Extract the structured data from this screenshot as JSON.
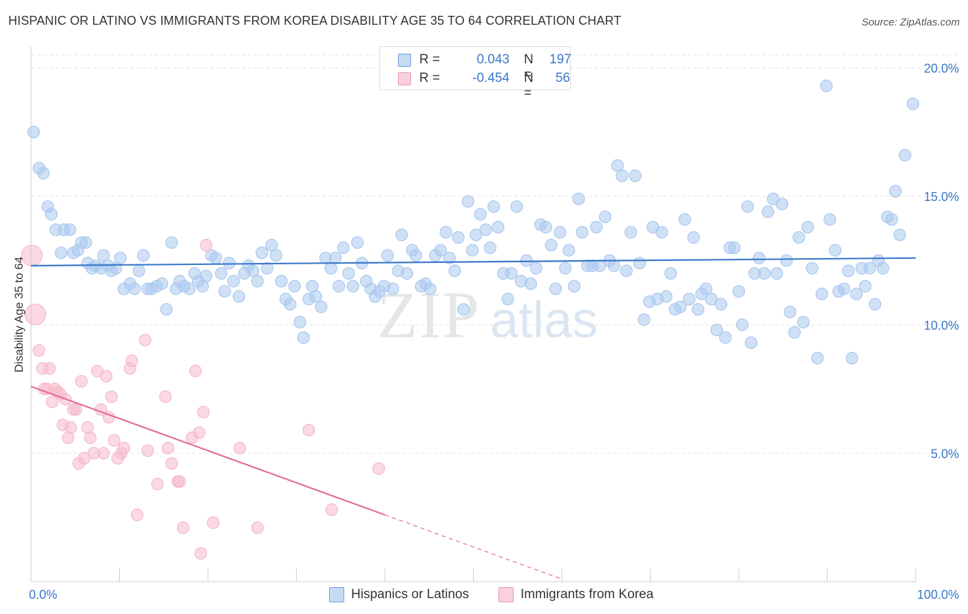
{
  "header": {
    "title": "HISPANIC OR LATINO VS IMMIGRANTS FROM KOREA DISABILITY AGE 35 TO 64 CORRELATION CHART",
    "source": "Source: ZipAtlas.com"
  },
  "stats": {
    "rows": [
      {
        "r_label": "R =",
        "r_value": "0.043",
        "n_label": "N =",
        "n_value": "197",
        "color": "#a9c8ef"
      },
      {
        "r_label": "R =",
        "r_value": "-0.454",
        "n_label": "N =",
        "n_value": "56",
        "color": "#f5b9cb"
      }
    ]
  },
  "legend": {
    "items": [
      {
        "label": "Hispanics or Latinos",
        "color": "#a9c8ef"
      },
      {
        "label": "Immigrants from Korea",
        "color": "#f5b9cb"
      }
    ]
  },
  "watermark": {
    "zip": "ZIP",
    "atlas": "atlas"
  },
  "chart_data": {
    "type": "scatter",
    "title": "HISPANIC OR LATINO VS IMMIGRANTS FROM KOREA DISABILITY AGE 35 TO 64 CORRELATION CHART",
    "xlabel": "",
    "ylabel": "Disability Age 35 to 64",
    "xlim": [
      0,
      100
    ],
    "ylim": [
      0,
      20.5
    ],
    "x_tick_labels": [
      "0.0%",
      "100.0%"
    ],
    "y_tick_labels": [
      "5.0%",
      "10.0%",
      "15.0%",
      "20.0%"
    ],
    "y_ticks": [
      5,
      10,
      15,
      20
    ],
    "grid": true,
    "series": [
      {
        "name": "Hispanics or Latinos",
        "color": "#3a78c9",
        "fill": "#a9c8ef",
        "trend": {
          "x": [
            0,
            100
          ],
          "y": [
            12.3,
            12.6
          ]
        },
        "points": [
          [
            0.3,
            17.5
          ],
          [
            0.9,
            16.1
          ],
          [
            1.4,
            15.9
          ],
          [
            1.9,
            14.6
          ],
          [
            2.3,
            14.3
          ],
          [
            2.8,
            13.7
          ],
          [
            3.4,
            12.8
          ],
          [
            3.7,
            13.7
          ],
          [
            4.4,
            13.7
          ],
          [
            4.8,
            12.8
          ],
          [
            5.3,
            12.9
          ],
          [
            5.7,
            13.2
          ],
          [
            6.2,
            13.2
          ],
          [
            6.4,
            12.4
          ],
          [
            6.9,
            12.2
          ],
          [
            7.3,
            12.3
          ],
          [
            7.9,
            12.2
          ],
          [
            8.2,
            12.7
          ],
          [
            8.7,
            12.3
          ],
          [
            9.1,
            12.1
          ],
          [
            9.6,
            12.2
          ],
          [
            10.1,
            12.6
          ],
          [
            10.5,
            11.4
          ],
          [
            11.2,
            11.6
          ],
          [
            11.7,
            11.4
          ],
          [
            12.2,
            12.1
          ],
          [
            12.7,
            12.7
          ],
          [
            13.2,
            11.4
          ],
          [
            13.6,
            11.4
          ],
          [
            14.2,
            11.5
          ],
          [
            14.8,
            11.6
          ],
          [
            15.3,
            10.6
          ],
          [
            15.9,
            13.2
          ],
          [
            16.4,
            11.4
          ],
          [
            16.8,
            11.7
          ],
          [
            17.3,
            11.5
          ],
          [
            17.9,
            11.4
          ],
          [
            18.5,
            12.0
          ],
          [
            18.9,
            11.7
          ],
          [
            19.4,
            11.5
          ],
          [
            19.8,
            11.9
          ],
          [
            20.4,
            12.7
          ],
          [
            20.9,
            12.6
          ],
          [
            21.5,
            12.0
          ],
          [
            21.9,
            11.3
          ],
          [
            22.4,
            12.4
          ],
          [
            22.9,
            11.7
          ],
          [
            23.5,
            11.1
          ],
          [
            24.1,
            12.0
          ],
          [
            24.6,
            12.3
          ],
          [
            25.1,
            12.1
          ],
          [
            25.6,
            11.7
          ],
          [
            26.1,
            12.8
          ],
          [
            26.7,
            12.2
          ],
          [
            27.2,
            13.1
          ],
          [
            27.7,
            12.7
          ],
          [
            28.3,
            11.7
          ],
          [
            28.8,
            11.0
          ],
          [
            29.3,
            10.8
          ],
          [
            29.8,
            11.5
          ],
          [
            30.4,
            10.1
          ],
          [
            30.8,
            9.5
          ],
          [
            31.4,
            11.0
          ],
          [
            31.8,
            11.5
          ],
          [
            32.2,
            11.1
          ],
          [
            32.8,
            10.7
          ],
          [
            33.3,
            12.6
          ],
          [
            33.9,
            12.2
          ],
          [
            34.4,
            12.6
          ],
          [
            34.8,
            11.5
          ],
          [
            35.3,
            13.0
          ],
          [
            35.9,
            12.0
          ],
          [
            36.4,
            11.5
          ],
          [
            36.9,
            13.2
          ],
          [
            37.4,
            12.4
          ],
          [
            37.9,
            11.7
          ],
          [
            38.4,
            11.4
          ],
          [
            38.9,
            11.1
          ],
          [
            39.4,
            11.3
          ],
          [
            39.9,
            11.5
          ],
          [
            40.3,
            12.7
          ],
          [
            40.9,
            11.4
          ],
          [
            41.5,
            12.1
          ],
          [
            41.9,
            13.5
          ],
          [
            42.5,
            12.0
          ],
          [
            43.1,
            12.9
          ],
          [
            43.5,
            12.7
          ],
          [
            44.1,
            11.5
          ],
          [
            44.6,
            11.6
          ],
          [
            45.1,
            11.4
          ],
          [
            45.7,
            12.7
          ],
          [
            46.3,
            12.9
          ],
          [
            46.9,
            13.6
          ],
          [
            47.3,
            12.6
          ],
          [
            47.9,
            12.1
          ],
          [
            48.3,
            13.4
          ],
          [
            48.9,
            10.6
          ],
          [
            49.4,
            14.8
          ],
          [
            49.9,
            12.9
          ],
          [
            50.3,
            13.5
          ],
          [
            50.8,
            14.3
          ],
          [
            51.4,
            13.7
          ],
          [
            51.9,
            13.0
          ],
          [
            52.3,
            14.6
          ],
          [
            52.8,
            13.8
          ],
          [
            53.4,
            12.0
          ],
          [
            53.9,
            11.0
          ],
          [
            54.3,
            12.0
          ],
          [
            54.9,
            14.6
          ],
          [
            55.4,
            11.7
          ],
          [
            56.0,
            12.5
          ],
          [
            56.5,
            11.6
          ],
          [
            57.1,
            12.2
          ],
          [
            57.6,
            13.9
          ],
          [
            58.2,
            13.8
          ],
          [
            58.8,
            13.1
          ],
          [
            59.3,
            11.4
          ],
          [
            59.8,
            13.6
          ],
          [
            60.4,
            12.2
          ],
          [
            60.8,
            12.9
          ],
          [
            61.4,
            11.5
          ],
          [
            61.9,
            14.9
          ],
          [
            62.3,
            13.6
          ],
          [
            62.9,
            12.3
          ],
          [
            63.5,
            12.3
          ],
          [
            63.9,
            13.8
          ],
          [
            64.3,
            12.3
          ],
          [
            64.9,
            14.2
          ],
          [
            65.4,
            12.5
          ],
          [
            65.9,
            12.3
          ],
          [
            66.3,
            16.2
          ],
          [
            66.8,
            15.8
          ],
          [
            67.3,
            12.1
          ],
          [
            67.8,
            13.6
          ],
          [
            68.3,
            15.8
          ],
          [
            68.8,
            12.4
          ],
          [
            69.3,
            10.2
          ],
          [
            69.9,
            10.9
          ],
          [
            70.3,
            13.8
          ],
          [
            70.8,
            11.0
          ],
          [
            71.3,
            13.6
          ],
          [
            71.8,
            11.1
          ],
          [
            72.3,
            12.0
          ],
          [
            72.8,
            10.6
          ],
          [
            73.4,
            10.7
          ],
          [
            73.9,
            14.1
          ],
          [
            74.4,
            11.0
          ],
          [
            74.9,
            13.4
          ],
          [
            75.4,
            10.6
          ],
          [
            75.8,
            11.2
          ],
          [
            76.3,
            11.4
          ],
          [
            76.9,
            11.0
          ],
          [
            77.5,
            9.8
          ],
          [
            78.0,
            10.8
          ],
          [
            78.5,
            9.5
          ],
          [
            79.0,
            13.0
          ],
          [
            79.5,
            13.0
          ],
          [
            80.0,
            11.3
          ],
          [
            80.4,
            10.0
          ],
          [
            81.0,
            14.6
          ],
          [
            81.4,
            9.3
          ],
          [
            81.8,
            12.0
          ],
          [
            82.3,
            12.6
          ],
          [
            82.9,
            12.0
          ],
          [
            83.3,
            14.4
          ],
          [
            83.9,
            14.9
          ],
          [
            84.3,
            12.0
          ],
          [
            84.9,
            14.7
          ],
          [
            85.4,
            12.5
          ],
          [
            85.8,
            10.5
          ],
          [
            86.3,
            9.7
          ],
          [
            86.8,
            13.4
          ],
          [
            87.3,
            10.1
          ],
          [
            87.8,
            13.8
          ],
          [
            88.3,
            12.2
          ],
          [
            88.9,
            8.7
          ],
          [
            89.4,
            11.2
          ],
          [
            89.9,
            19.3
          ],
          [
            90.3,
            14.1
          ],
          [
            90.9,
            12.9
          ],
          [
            91.3,
            11.3
          ],
          [
            91.9,
            11.4
          ],
          [
            92.4,
            12.1
          ],
          [
            92.8,
            8.7
          ],
          [
            93.3,
            11.2
          ],
          [
            93.9,
            12.2
          ],
          [
            94.3,
            11.5
          ],
          [
            94.8,
            12.2
          ],
          [
            95.4,
            10.8
          ],
          [
            95.8,
            12.5
          ],
          [
            96.3,
            12.2
          ],
          [
            96.8,
            14.2
          ],
          [
            97.3,
            14.1
          ],
          [
            97.7,
            15.2
          ],
          [
            98.2,
            13.5
          ],
          [
            98.8,
            16.6
          ],
          [
            99.7,
            18.6
          ]
        ]
      },
      {
        "name": "Immigrants from Korea",
        "color": "#e06d93",
        "fill": "#f5b9cb",
        "trend": {
          "x": [
            0,
            40
          ],
          "y": [
            7.6,
            2.6
          ]
        },
        "trend_dashed": {
          "x": [
            40,
            60
          ],
          "y": [
            2.6,
            0.1
          ]
        },
        "points": [
          [
            0.1,
            12.7
          ],
          [
            0.5,
            10.4
          ],
          [
            0.9,
            9.0
          ],
          [
            1.3,
            8.3
          ],
          [
            1.5,
            7.5
          ],
          [
            1.8,
            7.5
          ],
          [
            2.1,
            8.3
          ],
          [
            2.4,
            7.0
          ],
          [
            2.7,
            7.5
          ],
          [
            3.0,
            7.4
          ],
          [
            3.3,
            7.3
          ],
          [
            3.6,
            6.1
          ],
          [
            3.9,
            7.1
          ],
          [
            4.2,
            5.6
          ],
          [
            4.5,
            6.0
          ],
          [
            4.8,
            6.7
          ],
          [
            5.1,
            6.7
          ],
          [
            5.4,
            4.6
          ],
          [
            5.7,
            7.8
          ],
          [
            6.0,
            4.8
          ],
          [
            6.4,
            6.0
          ],
          [
            6.7,
            5.6
          ],
          [
            7.1,
            5.0
          ],
          [
            7.5,
            8.2
          ],
          [
            7.9,
            6.7
          ],
          [
            8.2,
            5.0
          ],
          [
            8.5,
            8.0
          ],
          [
            8.8,
            6.4
          ],
          [
            9.1,
            7.2
          ],
          [
            9.4,
            5.5
          ],
          [
            9.8,
            4.8
          ],
          [
            10.2,
            5.0
          ],
          [
            10.5,
            5.2
          ],
          [
            11.2,
            8.3
          ],
          [
            11.4,
            8.6
          ],
          [
            12.0,
            2.6
          ],
          [
            12.9,
            9.4
          ],
          [
            13.2,
            5.1
          ],
          [
            14.3,
            3.8
          ],
          [
            15.2,
            7.2
          ],
          [
            15.5,
            5.2
          ],
          [
            15.9,
            4.6
          ],
          [
            16.6,
            3.9
          ],
          [
            16.8,
            3.9
          ],
          [
            17.2,
            2.1
          ],
          [
            18.2,
            5.6
          ],
          [
            18.6,
            8.2
          ],
          [
            19.0,
            5.8
          ],
          [
            19.2,
            1.1
          ],
          [
            19.5,
            6.6
          ],
          [
            19.8,
            13.1
          ],
          [
            20.6,
            2.3
          ],
          [
            23.6,
            5.2
          ],
          [
            25.6,
            2.1
          ],
          [
            31.4,
            5.9
          ],
          [
            34.0,
            2.8
          ],
          [
            39.3,
            4.4
          ]
        ]
      }
    ]
  }
}
